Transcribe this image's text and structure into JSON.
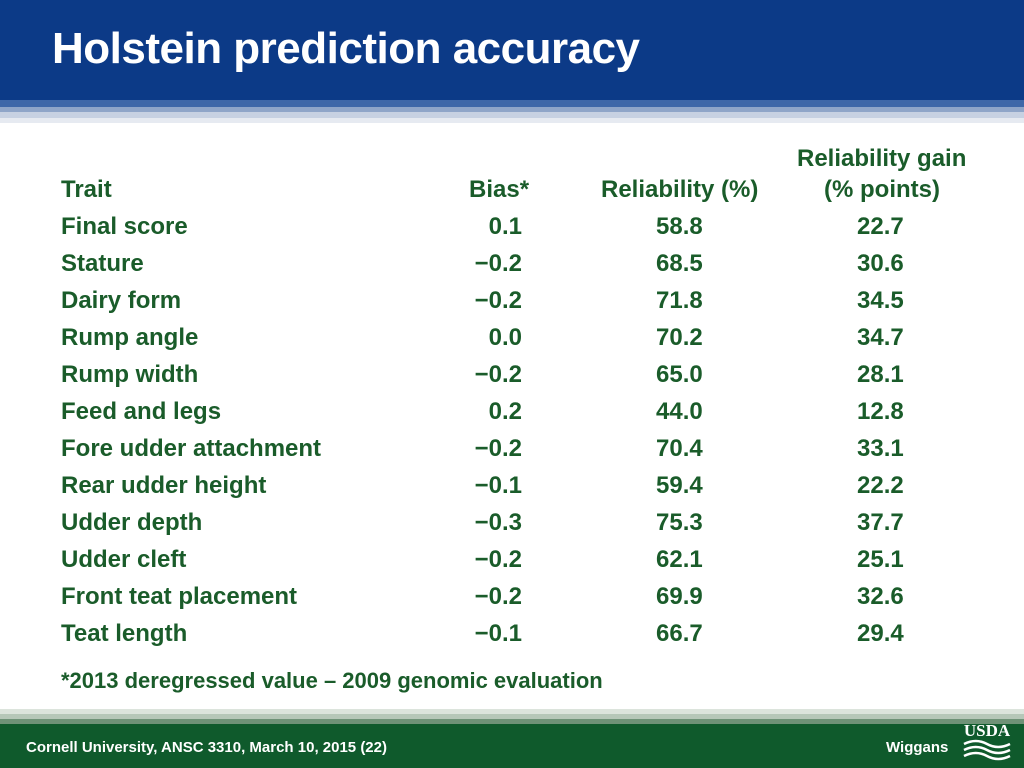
{
  "slide": {
    "title": "Holstein prediction accuracy",
    "footer_left": "Cornell University, ANSC 3310, March 10, 2015 (22)",
    "footer_right": "Wiggans",
    "footnote": "*2013 deregressed value – 2009 genomic evaluation"
  },
  "logo": {
    "text": "USDA"
  },
  "table": {
    "headers": {
      "trait": "Trait",
      "bias": "Bias*",
      "reliability": "Reliability (%)",
      "gain_line1": "Reliability gain",
      "gain_line2": "(% points)"
    },
    "rows": [
      {
        "trait": "Final score",
        "bias": "0.1",
        "reliability": "58.8",
        "gain": "22.7"
      },
      {
        "trait": "Stature",
        "bias": "−0.2",
        "reliability": "68.5",
        "gain": "30.6"
      },
      {
        "trait": "Dairy form",
        "bias": "−0.2",
        "reliability": "71.8",
        "gain": "34.5"
      },
      {
        "trait": "Rump angle",
        "bias": "0.0",
        "reliability": "70.2",
        "gain": "34.7"
      },
      {
        "trait": "Rump width",
        "bias": "−0.2",
        "reliability": "65.0",
        "gain": "28.1"
      },
      {
        "trait": "Feed and legs",
        "bias": "0.2",
        "reliability": "44.0",
        "gain": "12.8"
      },
      {
        "trait": "Fore udder attachment",
        "bias": "−0.2",
        "reliability": "70.4",
        "gain": "33.1"
      },
      {
        "trait": "Rear udder height",
        "bias": "−0.1",
        "reliability": "59.4",
        "gain": "22.2"
      },
      {
        "trait": "Udder depth",
        "bias": "−0.3",
        "reliability": "75.3",
        "gain": "37.7"
      },
      {
        "trait": "Udder cleft",
        "bias": "−0.2",
        "reliability": "62.1",
        "gain": "25.1"
      },
      {
        "trait": "Front teat placement",
        "bias": "−0.2",
        "reliability": "69.9",
        "gain": "32.6"
      },
      {
        "trait": "Teat length",
        "bias": "−0.1",
        "reliability": "66.7",
        "gain": "29.4"
      }
    ]
  }
}
